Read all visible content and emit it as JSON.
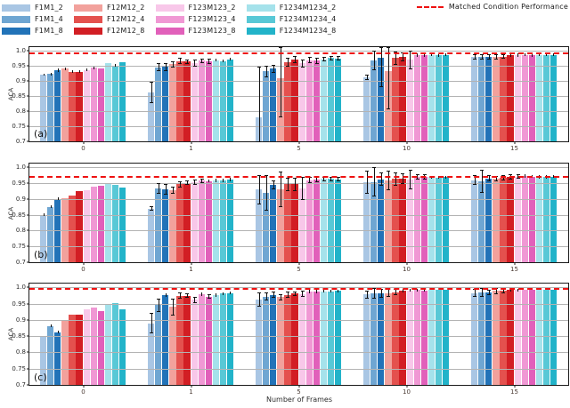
{
  "legend": {
    "matched_label": "Matched Condition Performance",
    "matched_color": "#ee1111"
  },
  "chart_data": {
    "type": "bar",
    "categories": [
      "0",
      "1",
      "5",
      "10",
      "15"
    ],
    "xlabel": "Number of Frames",
    "ylabel": "ACA",
    "ylim": [
      0.7,
      1.012
    ],
    "yticks": [
      0.7,
      0.75,
      0.8,
      0.85,
      0.9,
      0.95,
      1.0
    ],
    "ytick_labels": [
      "0.7",
      "0.75",
      "0.8",
      "0.85",
      "0.9",
      "0.95",
      "1.0"
    ],
    "grid": true,
    "legend_position": "top",
    "series_names": [
      "F1M1_2",
      "F1M1_4",
      "F1M1_8",
      "F12M12_2",
      "F12M12_4",
      "F12M12_8",
      "F123M123_2",
      "F123M123_4",
      "F123M123_8",
      "F1234M1234_2",
      "F1234M1234_4",
      "F1234M1234_8"
    ],
    "series_colors": [
      "#a9c6e4",
      "#6fa6d2",
      "#2273b8",
      "#f2a19c",
      "#e4514e",
      "#d21e24",
      "#f8c7e9",
      "#f098d4",
      "#e160ba",
      "#a5e2eb",
      "#58c8d6",
      "#22b3c9"
    ],
    "subplots": [
      {
        "label": "(a)",
        "matched_line": 0.99,
        "series": [
          {
            "name": "F1M1_2",
            "values": [
              0.921,
              0.862,
              0.78,
              0.912,
              0.979
            ],
            "errors": [
              0.004,
              0.035,
              0.165,
              0.006,
              0.008
            ]
          },
          {
            "name": "F1M1_4",
            "values": [
              0.923,
              0.945,
              0.932,
              0.968,
              0.98
            ],
            "errors": [
              0.004,
              0.012,
              0.018,
              0.03,
              0.008
            ]
          },
          {
            "name": "F1M1_8",
            "values": [
              0.935,
              0.946,
              0.941,
              0.977,
              0.979
            ],
            "errors": [
              0.005,
              0.012,
              0.012,
              0.095,
              0.008
            ]
          },
          {
            "name": "F12M12_2",
            "values": [
              0.94,
              0.955,
              0.91,
              0.932,
              0.979
            ],
            "errors": [
              0.004,
              0.008,
              0.13,
              0.125,
              0.008
            ]
          },
          {
            "name": "F12M12_4",
            "values": [
              0.931,
              0.966,
              0.962,
              0.976,
              0.98
            ],
            "errors": [
              0.004,
              0.008,
              0.014,
              0.02,
              0.006
            ]
          },
          {
            "name": "F12M12_8",
            "values": [
              0.931,
              0.964,
              0.971,
              0.98,
              0.985
            ],
            "errors": [
              0.004,
              0.006,
              0.01,
              0.014,
              0.005
            ]
          },
          {
            "name": "F123M123_2",
            "values": [
              0.936,
              0.96,
              0.958,
              0.97,
              0.985
            ],
            "errors": [
              0.004,
              0.01,
              0.012,
              0.03,
              0.005
            ]
          },
          {
            "name": "F123M123_4",
            "values": [
              0.943,
              0.967,
              0.969,
              0.985,
              0.986
            ],
            "errors": [
              0.004,
              0.006,
              0.008,
              0.005,
              0.004
            ]
          },
          {
            "name": "F123M123_8",
            "values": [
              0.94,
              0.965,
              0.967,
              0.985,
              0.985
            ],
            "errors": [
              0.003,
              0.006,
              0.008,
              0.004,
              0.004
            ]
          },
          {
            "name": "F1234M1234_2",
            "values": [
              0.96,
              0.969,
              0.972,
              0.986,
              0.986
            ],
            "errors": [
              0.003,
              0.005,
              0.006,
              0.004,
              0.004
            ]
          },
          {
            "name": "F1234M1234_4",
            "values": [
              0.951,
              0.966,
              0.976,
              0.985,
              0.986
            ],
            "errors": [
              0.004,
              0.005,
              0.006,
              0.004,
              0.004
            ]
          },
          {
            "name": "F1234M1234_8",
            "values": [
              0.961,
              0.972,
              0.975,
              0.986,
              0.987
            ],
            "errors": [
              0.003,
              0.005,
              0.006,
              0.004,
              0.004
            ]
          }
        ]
      },
      {
        "label": "(b)",
        "matched_line": 0.97,
        "series": [
          {
            "name": "F1M1_2",
            "values": [
              0.85,
              0.87,
              0.93,
              0.952,
              0.96
            ],
            "errors": [
              0.004,
              0.006,
              0.045,
              0.035,
              0.015
            ]
          },
          {
            "name": "F1M1_4",
            "values": [
              0.875,
              0.934,
              0.92,
              0.953,
              0.955
            ],
            "errors": [
              0.004,
              0.015,
              0.055,
              0.045,
              0.035
            ]
          },
          {
            "name": "F1M1_8",
            "values": [
              0.9,
              0.93,
              0.944,
              0.962,
              0.965
            ],
            "errors": [
              0.004,
              0.015,
              0.012,
              0.02,
              0.008
            ]
          },
          {
            "name": "F12M12_2",
            "values": [
              0.903,
              0.927,
              0.93,
              0.958,
              0.964
            ],
            "errors": [
              0.003,
              0.01,
              0.055,
              0.03,
              0.008
            ]
          },
          {
            "name": "F12M12_4",
            "values": [
              0.912,
              0.946,
              0.947,
              0.963,
              0.967
            ],
            "errors": [
              0.003,
              0.008,
              0.02,
              0.02,
              0.006
            ]
          },
          {
            "name": "F12M12_8",
            "values": [
              0.926,
              0.951,
              0.947,
              0.965,
              0.97
            ],
            "errors": [
              0.003,
              0.006,
              0.02,
              0.015,
              0.006
            ]
          },
          {
            "name": "F123M123_2",
            "values": [
              0.929,
              0.953,
              0.933,
              0.961,
              0.971
            ],
            "errors": [
              0.003,
              0.008,
              0.035,
              0.03,
              0.006
            ]
          },
          {
            "name": "F123M123_4",
            "values": [
              0.94,
              0.958,
              0.96,
              0.97,
              0.972
            ],
            "errors": [
              0.003,
              0.006,
              0.008,
              0.006,
              0.005
            ]
          },
          {
            "name": "F123M123_8",
            "values": [
              0.941,
              0.957,
              0.962,
              0.97,
              0.971
            ],
            "errors": [
              0.003,
              0.005,
              0.008,
              0.006,
              0.005
            ]
          },
          {
            "name": "F1234M1234_2",
            "values": [
              0.95,
              0.959,
              0.963,
              0.969,
              0.97
            ],
            "errors": [
              0.003,
              0.005,
              0.006,
              0.005,
              0.005
            ]
          },
          {
            "name": "F1234M1234_4",
            "values": [
              0.944,
              0.959,
              0.963,
              0.968,
              0.97
            ],
            "errors": [
              0.003,
              0.005,
              0.006,
              0.005,
              0.005
            ]
          },
          {
            "name": "F1234M1234_8",
            "values": [
              0.937,
              0.961,
              0.962,
              0.969,
              0.971
            ],
            "errors": [
              0.003,
              0.005,
              0.006,
              0.005,
              0.005
            ]
          }
        ]
      },
      {
        "label": "(c)",
        "matched_line": 0.995,
        "series": [
          {
            "name": "F1M1_2",
            "values": [
              0.85,
              0.889,
              0.962,
              0.978,
              0.983
            ],
            "errors": [
              0.003,
              0.03,
              0.02,
              0.012,
              0.01
            ]
          },
          {
            "name": "F1M1_4",
            "values": [
              0.881,
              0.945,
              0.972,
              0.981,
              0.984
            ],
            "errors": [
              0.004,
              0.02,
              0.01,
              0.015,
              0.012
            ]
          },
          {
            "name": "F1M1_8",
            "values": [
              0.862,
              0.977,
              0.977,
              0.982,
              0.985
            ],
            "errors": [
              0.004,
              0.005,
              0.008,
              0.012,
              0.006
            ]
          },
          {
            "name": "F12M12_2",
            "values": [
              0.9,
              0.94,
              0.97,
              0.983,
              0.989
            ],
            "errors": [
              0.003,
              0.025,
              0.008,
              0.012,
              0.008
            ]
          },
          {
            "name": "F12M12_4",
            "values": [
              0.917,
              0.975,
              0.977,
              0.986,
              0.99
            ],
            "errors": [
              0.003,
              0.008,
              0.008,
              0.008,
              0.006
            ]
          },
          {
            "name": "F12M12_8",
            "values": [
              0.917,
              0.975,
              0.981,
              0.99,
              0.992
            ],
            "errors": [
              0.003,
              0.006,
              0.006,
              0.005,
              0.004
            ]
          },
          {
            "name": "F123M123_2",
            "values": [
              0.932,
              0.962,
              0.98,
              0.991,
              0.992
            ],
            "errors": [
              0.003,
              0.008,
              0.008,
              0.005,
              0.004
            ]
          },
          {
            "name": "F123M123_4",
            "values": [
              0.937,
              0.98,
              0.988,
              0.992,
              0.993
            ],
            "errors": [
              0.003,
              0.005,
              0.005,
              0.004,
              0.003
            ]
          },
          {
            "name": "F123M123_8",
            "values": [
              0.928,
              0.972,
              0.987,
              0.991,
              0.992
            ],
            "errors": [
              0.003,
              0.006,
              0.005,
              0.004,
              0.003
            ]
          },
          {
            "name": "F1234M1234_2",
            "values": [
              0.948,
              0.977,
              0.988,
              0.992,
              0.993
            ],
            "errors": [
              0.003,
              0.005,
              0.004,
              0.003,
              0.003
            ]
          },
          {
            "name": "F1234M1234_4",
            "values": [
              0.952,
              0.981,
              0.988,
              0.992,
              0.993
            ],
            "errors": [
              0.003,
              0.004,
              0.004,
              0.003,
              0.003
            ]
          },
          {
            "name": "F1234M1234_8",
            "values": [
              0.933,
              0.982,
              0.989,
              0.992,
              0.993
            ],
            "errors": [
              0.003,
              0.004,
              0.004,
              0.003,
              0.003
            ]
          }
        ]
      }
    ]
  }
}
